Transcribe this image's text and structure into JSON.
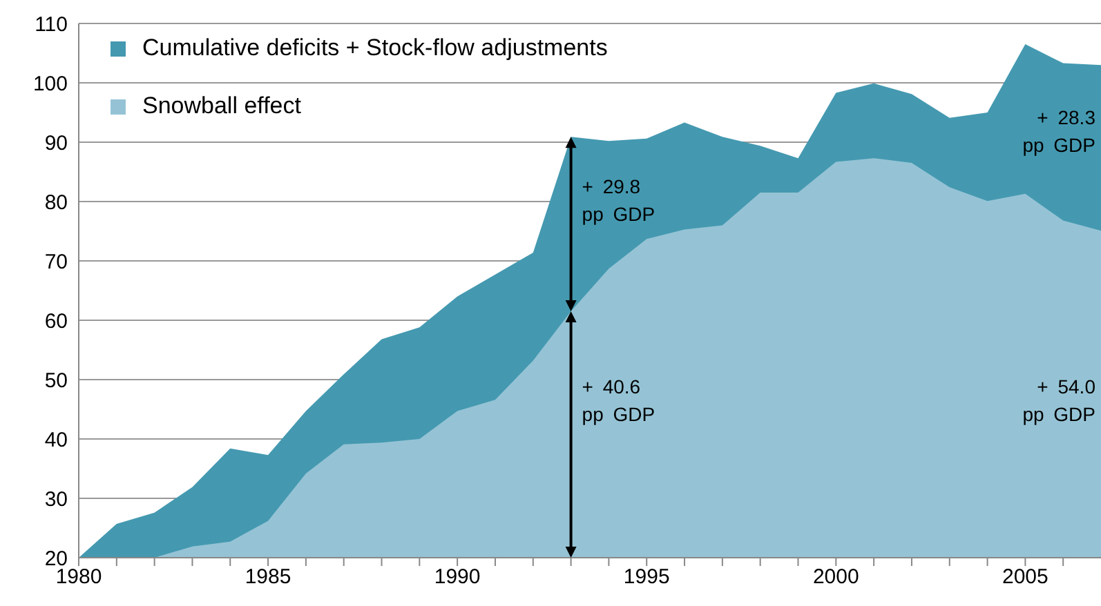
{
  "chart_data": {
    "type": "area",
    "grid": "y",
    "legend": "top left",
    "x": [
      1980,
      1981,
      1982,
      1983,
      1984,
      1985,
      1986,
      1987,
      1988,
      1989,
      1990,
      1991,
      1992,
      1993,
      1994,
      1995,
      1996,
      1997,
      1998,
      1999,
      2000,
      2001,
      2002,
      2003,
      2004,
      2005,
      2006,
      2007
    ],
    "series": [
      {
        "name": "Cumulative deficits + Stock-flow adjustments",
        "color": "#4499b0",
        "values": [
          20,
          25.7,
          27.6,
          31.9,
          38.4,
          37.3,
          44.7,
          50.9,
          56.8,
          58.8,
          64.0,
          67.7,
          71.4,
          90.9,
          90.2,
          90.6,
          93.3,
          90.9,
          89.4,
          87.3,
          98.3,
          99.9,
          98.1,
          94.1,
          95.0,
          106.5,
          103.3,
          103.0
        ]
      },
      {
        "name": "Snowball effect",
        "color": "#95c3d5",
        "values": [
          20,
          20,
          20,
          21.9,
          22.7,
          26.2,
          34.2,
          39.1,
          39.4,
          40.0,
          44.7,
          46.6,
          53.2,
          61.5,
          68.7,
          73.7,
          75.3,
          76.0,
          81.5,
          81.5,
          86.7,
          87.3,
          86.5,
          82.4,
          80.1,
          81.3,
          76.8,
          75.1
        ]
      }
    ],
    "xlim": [
      1980,
      2007
    ],
    "xticks": [
      1980,
      {
        "value": 1981,
        "label": null
      },
      {
        "value": 1982,
        "label": null
      },
      {
        "value": 1983,
        "label": null
      },
      {
        "value": 1984,
        "label": null
      },
      1985,
      {
        "value": 1986,
        "label": null
      },
      {
        "value": 1987,
        "label": null
      },
      {
        "value": 1988,
        "label": null
      },
      {
        "value": 1989,
        "label": null
      },
      1990,
      {
        "value": 1991,
        "label": null
      },
      {
        "value": 1992,
        "label": null
      },
      {
        "value": 1993,
        "label": null
      },
      {
        "value": 1994,
        "label": null
      },
      1995,
      {
        "value": 1996,
        "label": null
      },
      {
        "value": 1997,
        "label": null
      },
      {
        "value": 1998,
        "label": null
      },
      {
        "value": 1999,
        "label": null
      },
      2000,
      {
        "value": 2001,
        "label": null
      },
      {
        "value": 2002,
        "label": null
      },
      {
        "value": 2003,
        "label": null
      },
      {
        "value": 2004,
        "label": null
      },
      2005,
      {
        "value": 2006,
        "label": null
      }
    ],
    "ylim": [
      20,
      110
    ],
    "yticks": [
      20,
      30,
      40,
      50,
      60,
      70,
      80,
      90,
      100,
      110
    ],
    "annotations": [
      "+ 29.8 pp GDP",
      "+ 40.6 pp GDP",
      "+ 28.3 pp GDP",
      "+ 54.0 pp GDP"
    ]
  }
}
